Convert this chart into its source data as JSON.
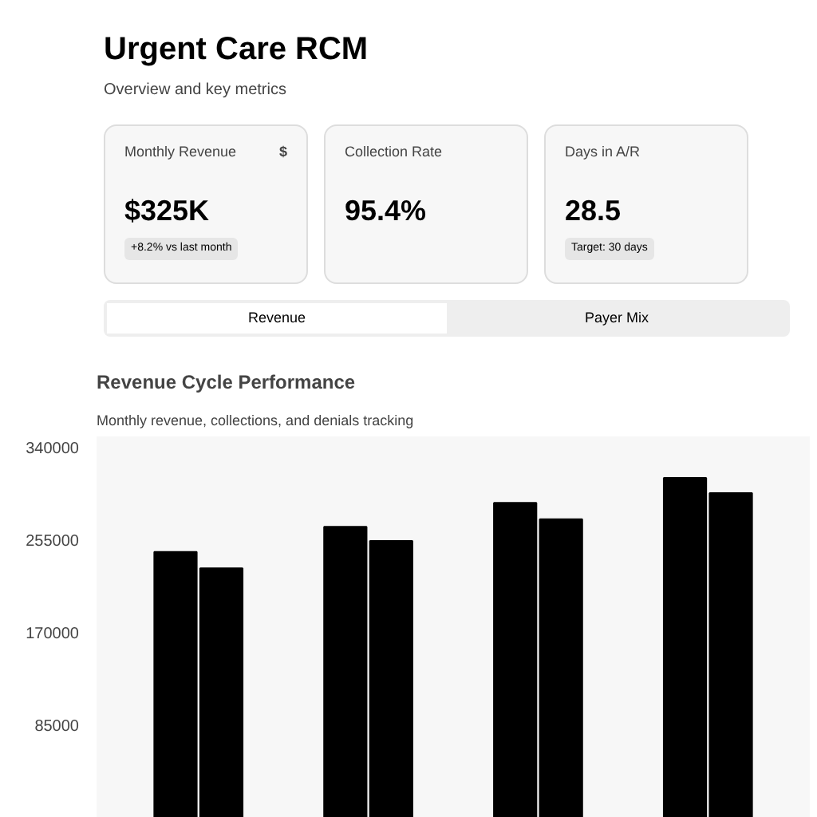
{
  "chart_data": [
    {
      "type": "other",
      "title": "Urgent Care RCM",
      "subtitle": "Overview and key metrics",
      "annotations": [
        "Monthly Revenue",
        "$",
        "$325K",
        "+8.2% vs last month",
        "Collection Rate",
        "95.4%",
        "Days in A/R",
        "28.5",
        "Target: 30 days",
        "Revenue",
        "Payer Mix"
      ]
    },
    {
      "type": "bar",
      "title": "Revenue Cycle Performance",
      "subtitle": "Monthly revenue, collections, and denials tracking",
      "categories": [
        null,
        null,
        null,
        null
      ],
      "series": [
        {
          "color": "#000000",
          "values": [
            244000,
            267000,
            289000,
            312000
          ]
        },
        {
          "color": "#000000",
          "values": [
            229000,
            254000,
            274000,
            298000
          ]
        }
      ],
      "ylim": [
        0,
        350000
      ],
      "yticks": [
        85000,
        170000,
        255000,
        340000
      ],
      "tick_labels": "y",
      "grid": false
    }
  ]
}
